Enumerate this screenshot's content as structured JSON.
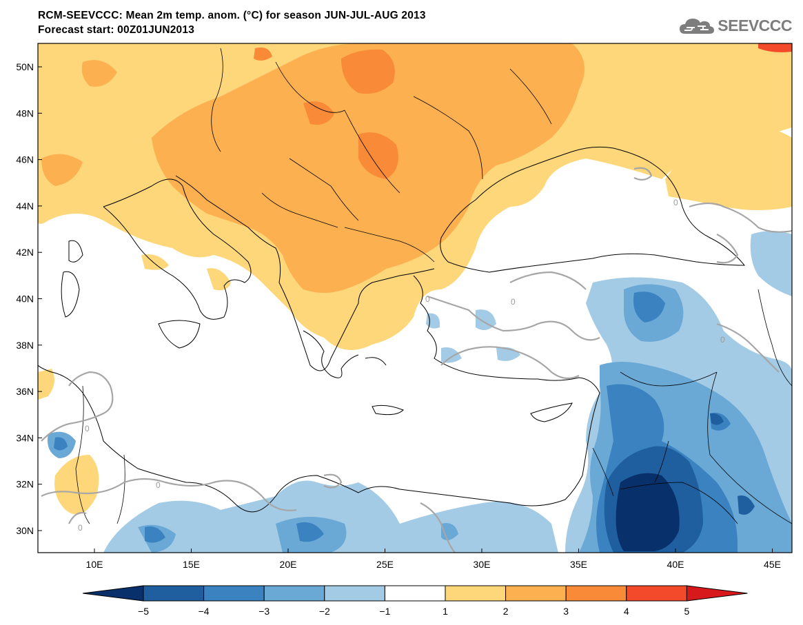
{
  "header": {
    "title": "RCM-SEEVCCC: Mean 2m temp. anom. (°C) for season JUN-JUL-AUG 2013",
    "subtitle": "Forecast start: 00Z01JUN2013"
  },
  "logo": {
    "text": "SEEVCCC",
    "icon": "cloud-icon"
  },
  "map": {
    "x_ticks": [
      "10E",
      "15E",
      "20E",
      "25E",
      "30E",
      "35E",
      "40E",
      "45E"
    ],
    "y_ticks": [
      "50N",
      "48N",
      "46N",
      "44N",
      "42N",
      "40N",
      "38N",
      "36N",
      "34N",
      "32N",
      "30N"
    ],
    "contour_label": "0",
    "colors": {
      "below_-5": "#08306b",
      "-5_-4": "#1f5fa0",
      "-4_-3": "#3a83c0",
      "-3_-2": "#6aa9d6",
      "-2_-1": "#a3cbe6",
      "-1_1": "#ffffff",
      "1_2": "#fdd77a",
      "2_3": "#fcb04f",
      "3_4": "#f98a38",
      "4_5": "#f24a2a",
      "above_5": "#d7191c",
      "land": "#000000",
      "zero_contour": "#a6a6a6"
    }
  },
  "colorbar": {
    "labels": [
      "−5",
      "−4",
      "−3",
      "−2",
      "−1",
      "1",
      "2",
      "3",
      "4",
      "5"
    ]
  }
}
